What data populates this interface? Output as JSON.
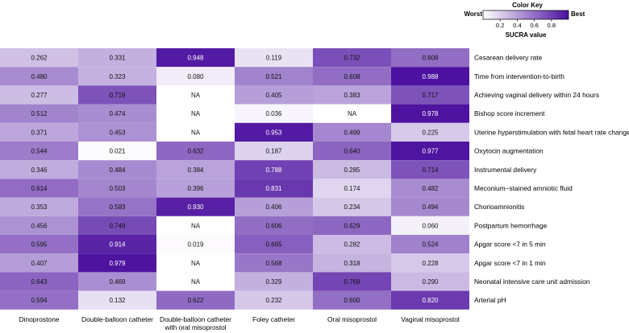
{
  "chart_data": {
    "type": "heatmap",
    "title": "",
    "columns": [
      [
        "Dinoprostone"
      ],
      [
        "Double-balloon catheter"
      ],
      [
        "Double-balloon catheter",
        "with oral misoprostol"
      ],
      [
        "Foley catheter"
      ],
      [
        "Oral misoprostol"
      ],
      [
        "Vaginal  misoprostol"
      ]
    ],
    "rows": [
      "Cesarean delivery rate",
      "Time from intervention-to-birth",
      "Achieving vaginal delivery within 24 hours",
      "Bishop score increment",
      "Uterine hyperstimulation with fetal heart rate changes",
      "Oxytocin augmentation",
      "Instrumental delivery",
      "Meconium−stained amniotic fluid",
      "Chorioamnionitis",
      "Postpartum hemorrhage",
      "Apgar score <7 in 5 min",
      "Apgar score <7 in 1 min",
      "Neonatal intensive care unit admission",
      "Arterial pH"
    ],
    "values": [
      [
        0.262,
        0.331,
        0.948,
        0.119,
        0.732,
        0.608
      ],
      [
        0.48,
        0.323,
        0.08,
        0.521,
        0.608,
        0.988
      ],
      [
        0.277,
        0.719,
        null,
        0.405,
        0.383,
        0.717
      ],
      [
        0.512,
        0.474,
        null,
        0.036,
        null,
        0.978
      ],
      [
        0.371,
        0.453,
        null,
        0.953,
        0.499,
        0.225
      ],
      [
        0.544,
        0.021,
        0.632,
        0.187,
        0.64,
        0.977
      ],
      [
        0.346,
        0.484,
        0.384,
        0.788,
        0.285,
        0.714
      ],
      [
        0.614,
        0.503,
        0.396,
        0.831,
        0.174,
        0.482
      ],
      [
        0.353,
        0.583,
        0.93,
        0.406,
        0.234,
        0.494
      ],
      [
        0.456,
        0.749,
        null,
        0.606,
        0.629,
        0.06
      ],
      [
        0.595,
        0.914,
        0.019,
        0.665,
        0.282,
        0.524
      ],
      [
        0.407,
        0.979,
        null,
        0.568,
        0.318,
        0.228
      ],
      [
        0.643,
        0.469,
        null,
        0.329,
        0.769,
        0.29
      ],
      [
        0.594,
        0.132,
        0.622,
        0.232,
        0.6,
        0.82
      ]
    ],
    "missing_label": "NA",
    "value_range": [
      0,
      1
    ],
    "color_low": "#ffffff",
    "color_high": "#4a0f9e",
    "color_key": {
      "title": "Color Key",
      "low_label": "Worst",
      "high_label": "Best",
      "ticks": [
        "0.2",
        "0.4",
        "0.6",
        "0.8"
      ],
      "tick_values": [
        0.2,
        0.4,
        0.6,
        0.8
      ],
      "axis_label": "SUCRA value",
      "placement": "top-right"
    },
    "grid": false
  }
}
